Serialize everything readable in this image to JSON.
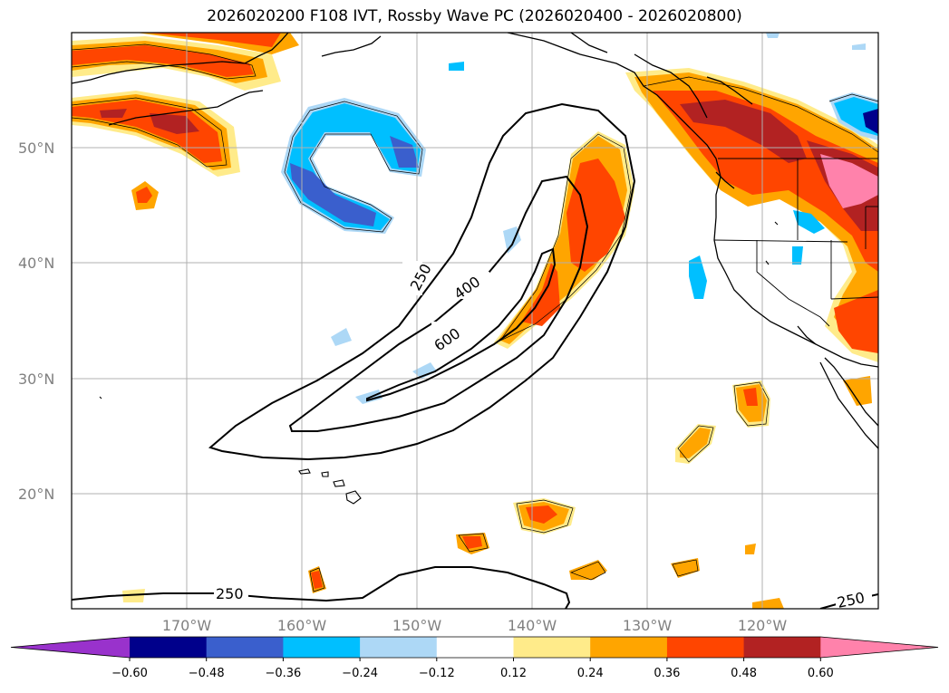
{
  "title": "2026020200 F108 IVT, Rossby Wave PC (2026020400 - 2026020800)",
  "lat_labels": [
    "50°N",
    "40°N",
    "30°N",
    "20°N"
  ],
  "lon_labels": [
    "170°W",
    "160°W",
    "150°W",
    "140°W",
    "130°W",
    "120°W"
  ],
  "contour_labels": [
    "250",
    "400",
    "600",
    "250",
    "250"
  ],
  "colorbar": {
    "ticks": [
      "−0.60",
      "−0.48",
      "−0.36",
      "−0.24",
      "−0.12",
      "0.12",
      "0.24",
      "0.36",
      "0.48",
      "0.60"
    ],
    "colors": [
      "#9932cc",
      "#00008b",
      "#3a5fcd",
      "#00bfff",
      "#add8f6",
      "#ffffff",
      "#ffeb8a",
      "#ffa500",
      "#ff4500",
      "#b22222",
      "#ff82ab"
    ]
  },
  "colors": {
    "grid": "#b0b0b0",
    "coast": "#000000",
    "contour": "#000000"
  }
}
